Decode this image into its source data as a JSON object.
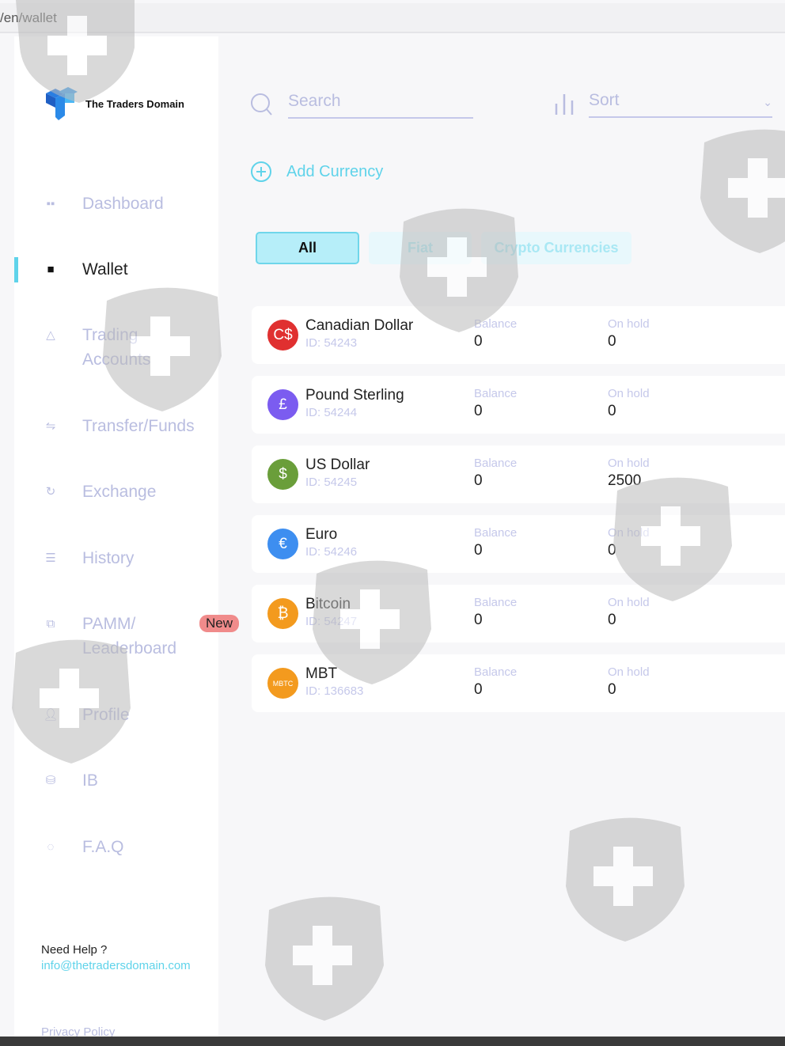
{
  "url": "/en/wallet",
  "brand": {
    "name": "The Traders Domain"
  },
  "nav": [
    {
      "label": "Dashboard",
      "icon": "grid-icon"
    },
    {
      "label": "Wallet",
      "icon": "wallet-icon",
      "active": true
    },
    {
      "label": "Trading Accounts",
      "icon": "triangle-icon"
    },
    {
      "label": "Transfer/Funds",
      "icon": "transfer-icon"
    },
    {
      "label": "Exchange",
      "icon": "refresh-icon"
    },
    {
      "label": "History",
      "icon": "list-icon"
    },
    {
      "label": "PAMM/ Leaderboard",
      "icon": "copy-icon",
      "badge": "New"
    },
    {
      "label": "Profile",
      "icon": "user-icon"
    },
    {
      "label": "IB",
      "icon": "stack-icon"
    },
    {
      "label": "F.A.Q",
      "icon": "chat-icon"
    }
  ],
  "help": {
    "title": "Need Help ?",
    "email": "info@thetradersdomain.com",
    "privacy": "Privacy Policy"
  },
  "toolbar": {
    "search_placeholder": "Search",
    "sort_placeholder": "Sort",
    "add_currency": "Add Currency"
  },
  "tabs": [
    "All",
    "Fiat",
    "Crypto Currencies"
  ],
  "colors": {
    "accent": "#5fd3ea",
    "muted": "#b9bde0"
  },
  "currencies": [
    {
      "name": "Canadian Dollar",
      "id": "ID: 54243",
      "symbol": "C$",
      "color": "#e03030",
      "balance_label": "Balance",
      "balance": "0",
      "hold_label": "On hold",
      "hold": "0"
    },
    {
      "name": "Pound Sterling",
      "id": "ID: 54244",
      "symbol": "£",
      "color": "#7b5cf0",
      "balance_label": "Balance",
      "balance": "0",
      "hold_label": "On hold",
      "hold": "0"
    },
    {
      "name": "US Dollar",
      "id": "ID: 54245",
      "symbol": "$",
      "color": "#6a9e3a",
      "balance_label": "Balance",
      "balance": "0",
      "hold_label": "On hold",
      "hold": "2500"
    },
    {
      "name": "Euro",
      "id": "ID: 54246",
      "symbol": "€",
      "color": "#3d8ef0",
      "balance_label": "Balance",
      "balance": "0",
      "hold_label": "On hold",
      "hold": "0"
    },
    {
      "name": "Bitcoin",
      "id": "ID: 54247",
      "symbol": "₿",
      "color": "#f39a1e",
      "balance_label": "Balance",
      "balance": "0",
      "hold_label": "On hold",
      "hold": "0"
    },
    {
      "name": "MBT",
      "id": "ID: 136683",
      "symbol": "MBTC",
      "color": "#f39a1e",
      "balance_label": "Balance",
      "balance": "0",
      "hold_label": "On hold",
      "hold": "0"
    }
  ]
}
